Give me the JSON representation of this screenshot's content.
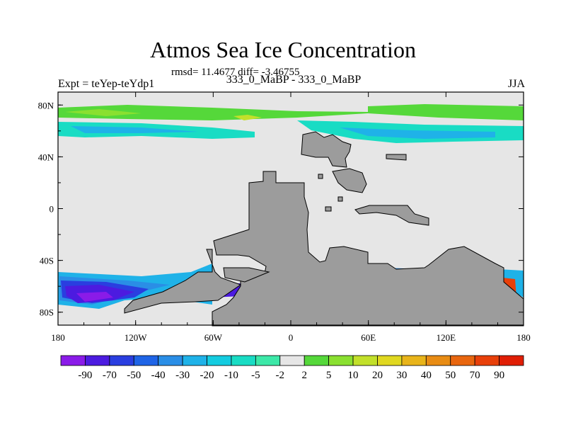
{
  "chart_data": {
    "type": "heatmap",
    "title": "Atmos Sea Ice Concentration",
    "stats_label": "rmsd= 11.4677 diff= -3.46755",
    "experiment_label": "Expt = teYep-teYdp1",
    "comparison_label": "333_0_MaBP - 333_0_MaBP",
    "season": "JJA",
    "x_ticks": [
      "180",
      "120W",
      "60W",
      "0",
      "60E",
      "120E",
      "180"
    ],
    "x_tick_lons": [
      -180,
      -120,
      -60,
      0,
      60,
      120,
      180
    ],
    "y_ticks": [
      "80N",
      "40N",
      "0",
      "40S",
      "80S"
    ],
    "y_tick_lats": [
      80,
      40,
      0,
      -40,
      -80
    ],
    "xlim": [
      -180,
      180
    ],
    "ylim": [
      -90,
      90
    ],
    "colorbar": {
      "labels": [
        "-90",
        "-70",
        "-50",
        "-40",
        "-30",
        "-20",
        "-10",
        "-5",
        "-2",
        "2",
        "5",
        "10",
        "20",
        "30",
        "40",
        "50",
        "70",
        "90"
      ],
      "colors": [
        "#8a1be8",
        "#4c1be0",
        "#2a3ee0",
        "#1f64e6",
        "#2a8ee6",
        "#1fb2e8",
        "#14cce0",
        "#19dcc4",
        "#3ce8a8",
        "#e6e6e6",
        "#55d83a",
        "#8ae030",
        "#c2e02a",
        "#e0d820",
        "#e8b41a",
        "#e88c14",
        "#e8660f",
        "#e8400a",
        "#e01e05"
      ]
    },
    "background_value": "no change (-2 to 2)",
    "land_color": "#9c9c9c"
  }
}
